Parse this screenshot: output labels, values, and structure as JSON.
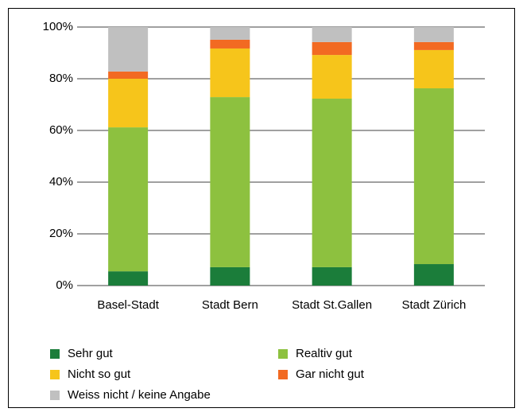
{
  "chart_data": {
    "type": "stacked_bar",
    "categories": [
      "Basel-Stadt",
      "Stadt Bern",
      "Stadt St.Gallen",
      "Stadt Zürich"
    ],
    "series": [
      {
        "name": "Sehr gut",
        "color": "#1b7d3a",
        "values": [
          5.5,
          7.1,
          7.1,
          8.3
        ]
      },
      {
        "name": "Realtiv gut",
        "color": "#8dc13f",
        "values": [
          55.7,
          65.8,
          65.2,
          68.0
        ]
      },
      {
        "name": "Nicht so gut",
        "color": "#f6c51b",
        "values": [
          18.8,
          18.8,
          16.9,
          14.8
        ]
      },
      {
        "name": "Gar nicht gut",
        "color": "#f26a22",
        "values": [
          2.8,
          3.4,
          5.0,
          3.1
        ]
      },
      {
        "name": "Weiss nicht / keine Angabe",
        "color": "#c0c0c0",
        "values": [
          17.2,
          4.9,
          5.8,
          5.8
        ]
      }
    ],
    "ylim": [
      0,
      100
    ],
    "yticks": [
      {
        "value": 0,
        "label": "0%"
      },
      {
        "value": 20,
        "label": "20%"
      },
      {
        "value": 40,
        "label": "40%"
      },
      {
        "value": 60,
        "label": "60%"
      },
      {
        "value": 80,
        "label": "80%"
      },
      {
        "value": 100,
        "label": "100%"
      }
    ],
    "grid": true
  }
}
